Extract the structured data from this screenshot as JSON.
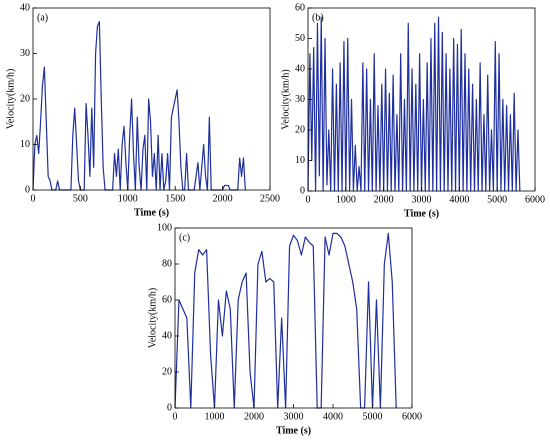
{
  "chart_data": [
    {
      "type": "line",
      "label": "(a)",
      "xlabel": "Time (s)",
      "ylabel": "Velocity(km/h)",
      "color": "#1f2f9e",
      "xlim": [
        0,
        2500
      ],
      "xticks": [
        0,
        500,
        1000,
        1500,
        2000,
        2500
      ],
      "ylim": [
        0,
        40
      ],
      "yticks": [
        0,
        10,
        20,
        30,
        40
      ],
      "x": [
        0,
        20,
        40,
        60,
        80,
        100,
        120,
        140,
        160,
        180,
        200,
        240,
        260,
        280,
        320,
        360,
        400,
        420,
        440,
        460,
        480,
        500,
        540,
        560,
        580,
        600,
        620,
        640,
        660,
        680,
        700,
        720,
        740,
        760,
        800,
        840,
        860,
        880,
        900,
        920,
        940,
        960,
        980,
        1000,
        1020,
        1040,
        1060,
        1080,
        1100,
        1120,
        1140,
        1160,
        1180,
        1200,
        1220,
        1240,
        1260,
        1280,
        1300,
        1320,
        1340,
        1360,
        1380,
        1400,
        1420,
        1440,
        1460,
        1480,
        1500,
        1520,
        1540,
        1560,
        1580,
        1600,
        1620,
        1640,
        1660,
        1700,
        1740,
        1760,
        1800,
        1820,
        1840,
        1860,
        1880,
        1900,
        1940,
        1980,
        2000,
        2020,
        2060,
        2080,
        2160,
        2180,
        2200,
        2220,
        2240
      ],
      "values": [
        0,
        10,
        12,
        8,
        15,
        23,
        27,
        15,
        3,
        2,
        0,
        0,
        2,
        0,
        0,
        0,
        0,
        12,
        18,
        10,
        2,
        0,
        0,
        19,
        12,
        3,
        18,
        5,
        30,
        36,
        37,
        20,
        5,
        0,
        0,
        0,
        8,
        3,
        9,
        0,
        10,
        14,
        6,
        0,
        12,
        20,
        8,
        0,
        16,
        5,
        0,
        9,
        12,
        0,
        20,
        15,
        3,
        8,
        0,
        12,
        0,
        8,
        0,
        2,
        8,
        0,
        16,
        18,
        20,
        22,
        15,
        5,
        0,
        0,
        8,
        0,
        0,
        0,
        6,
        0,
        10,
        3,
        0,
        16,
        0,
        0,
        0,
        0,
        0,
        1,
        1,
        0,
        0,
        7,
        3,
        7,
        0
      ]
    },
    {
      "type": "line",
      "label": "(b)",
      "xlabel": "Time (s)",
      "ylabel": "Velocity(km/h)",
      "color": "#1f2f9e",
      "xlim": [
        0,
        6000
      ],
      "xticks": [
        0,
        1000,
        2000,
        3000,
        4000,
        5000,
        6000
      ],
      "ylim": [
        0,
        60
      ],
      "yticks": [
        0,
        10,
        20,
        30,
        40,
        50,
        60
      ],
      "x": [
        0,
        50,
        100,
        150,
        200,
        250,
        300,
        350,
        400,
        450,
        500,
        550,
        600,
        650,
        700,
        750,
        800,
        850,
        900,
        950,
        1000,
        1050,
        1100,
        1150,
        1200,
        1250,
        1300,
        1350,
        1400,
        1450,
        1500,
        1550,
        1600,
        1650,
        1700,
        1750,
        1800,
        1850,
        1900,
        1950,
        2000,
        2050,
        2100,
        2150,
        2200,
        2250,
        2300,
        2350,
        2400,
        2450,
        2500,
        2550,
        2600,
        2650,
        2700,
        2750,
        2800,
        2850,
        2900,
        2950,
        3000,
        3050,
        3100,
        3150,
        3200,
        3250,
        3300,
        3350,
        3400,
        3450,
        3500,
        3550,
        3600,
        3650,
        3700,
        3750,
        3800,
        3850,
        3900,
        3950,
        4000,
        4050,
        4100,
        4150,
        4200,
        4250,
        4300,
        4350,
        4400,
        4450,
        4500,
        4550,
        4600,
        4650,
        4700,
        4750,
        4800,
        4850,
        4900,
        4950,
        5000,
        5050,
        5100,
        5150,
        5200,
        5250,
        5300,
        5350,
        5400,
        5450,
        5500,
        5550,
        5600
      ],
      "values": [
        0,
        45,
        10,
        47,
        0,
        55,
        5,
        57,
        0,
        50,
        2,
        20,
        0,
        40,
        0,
        35,
        0,
        42,
        0,
        49,
        0,
        50,
        0,
        30,
        0,
        15,
        0,
        8,
        0,
        42,
        0,
        40,
        0,
        30,
        0,
        45,
        0,
        28,
        0,
        35,
        0,
        40,
        0,
        32,
        0,
        38,
        0,
        25,
        0,
        45,
        0,
        30,
        0,
        55,
        0,
        40,
        0,
        35,
        0,
        45,
        0,
        30,
        0,
        42,
        0,
        50,
        0,
        55,
        0,
        57,
        0,
        52,
        0,
        45,
        0,
        40,
        0,
        50,
        0,
        48,
        0,
        53,
        0,
        45,
        0,
        40,
        0,
        35,
        0,
        30,
        0,
        42,
        0,
        25,
        0,
        38,
        0,
        20,
        0,
        49,
        0,
        45,
        0,
        30,
        0,
        28,
        0,
        25,
        0,
        32,
        0,
        20,
        0
      ]
    },
    {
      "type": "line",
      "label": "(c)",
      "xlabel": "Time (s)",
      "ylabel": "Velocity(km/h)",
      "color": "#1f2f9e",
      "xlim": [
        0,
        6000
      ],
      "xticks": [
        0,
        1000,
        2000,
        3000,
        4000,
        5000,
        6000
      ],
      "ylim": [
        0,
        100
      ],
      "yticks": [
        0,
        20,
        40,
        60,
        80,
        100
      ],
      "x": [
        0,
        100,
        200,
        300,
        400,
        500,
        600,
        700,
        800,
        900,
        1000,
        1100,
        1200,
        1300,
        1400,
        1500,
        1600,
        1700,
        1800,
        1900,
        2000,
        2100,
        2200,
        2300,
        2400,
        2500,
        2600,
        2700,
        2800,
        2900,
        3000,
        3100,
        3200,
        3300,
        3400,
        3500,
        3600,
        3700,
        3800,
        3900,
        4000,
        4100,
        4200,
        4300,
        4400,
        4500,
        4600,
        4700,
        4800,
        4900,
        5000,
        5100,
        5200,
        5300,
        5400,
        5500,
        5600
      ],
      "values": [
        0,
        60,
        55,
        50,
        0,
        75,
        88,
        85,
        88,
        30,
        0,
        60,
        40,
        65,
        55,
        0,
        60,
        70,
        75,
        20,
        0,
        80,
        87,
        70,
        72,
        70,
        0,
        50,
        0,
        90,
        96,
        93,
        85,
        95,
        92,
        90,
        0,
        0,
        95,
        85,
        97,
        97,
        95,
        90,
        80,
        70,
        55,
        0,
        0,
        70,
        0,
        60,
        0,
        80,
        97,
        70,
        0
      ]
    }
  ]
}
